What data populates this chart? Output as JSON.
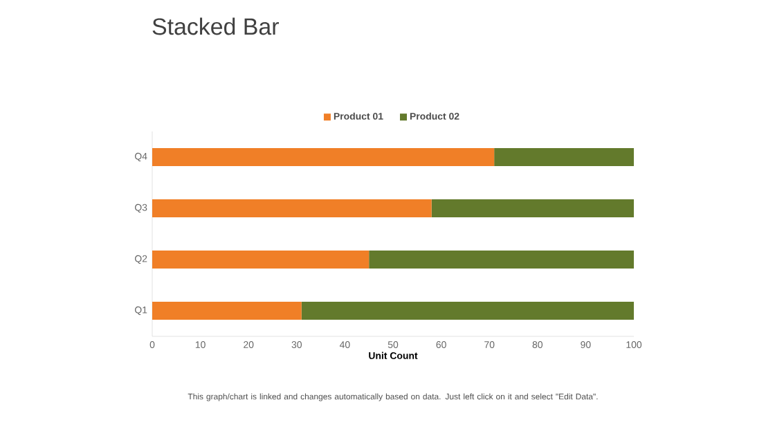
{
  "chart_data": {
    "type": "bar",
    "orientation": "horizontal",
    "stacked": true,
    "title": "Stacked Bar",
    "xlabel": "Unit Count",
    "categories": [
      "Q4",
      "Q3",
      "Q2",
      "Q1"
    ],
    "series": [
      {
        "name": "Product 01",
        "color": "#f07f27",
        "values": [
          71,
          58,
          45,
          31
        ]
      },
      {
        "name": "Product 02",
        "color": "#637a2c",
        "values": [
          29,
          42,
          55,
          69
        ]
      }
    ],
    "xlim": [
      0,
      100
    ],
    "xticks": [
      0,
      10,
      20,
      30,
      40,
      50,
      60,
      70,
      80,
      90,
      100
    ],
    "grid": false,
    "legend": "top",
    "annotations": [
      "This graph/chart is linked and changes automatically based on data. Just left click on it and select \"Edit Data\"."
    ]
  }
}
